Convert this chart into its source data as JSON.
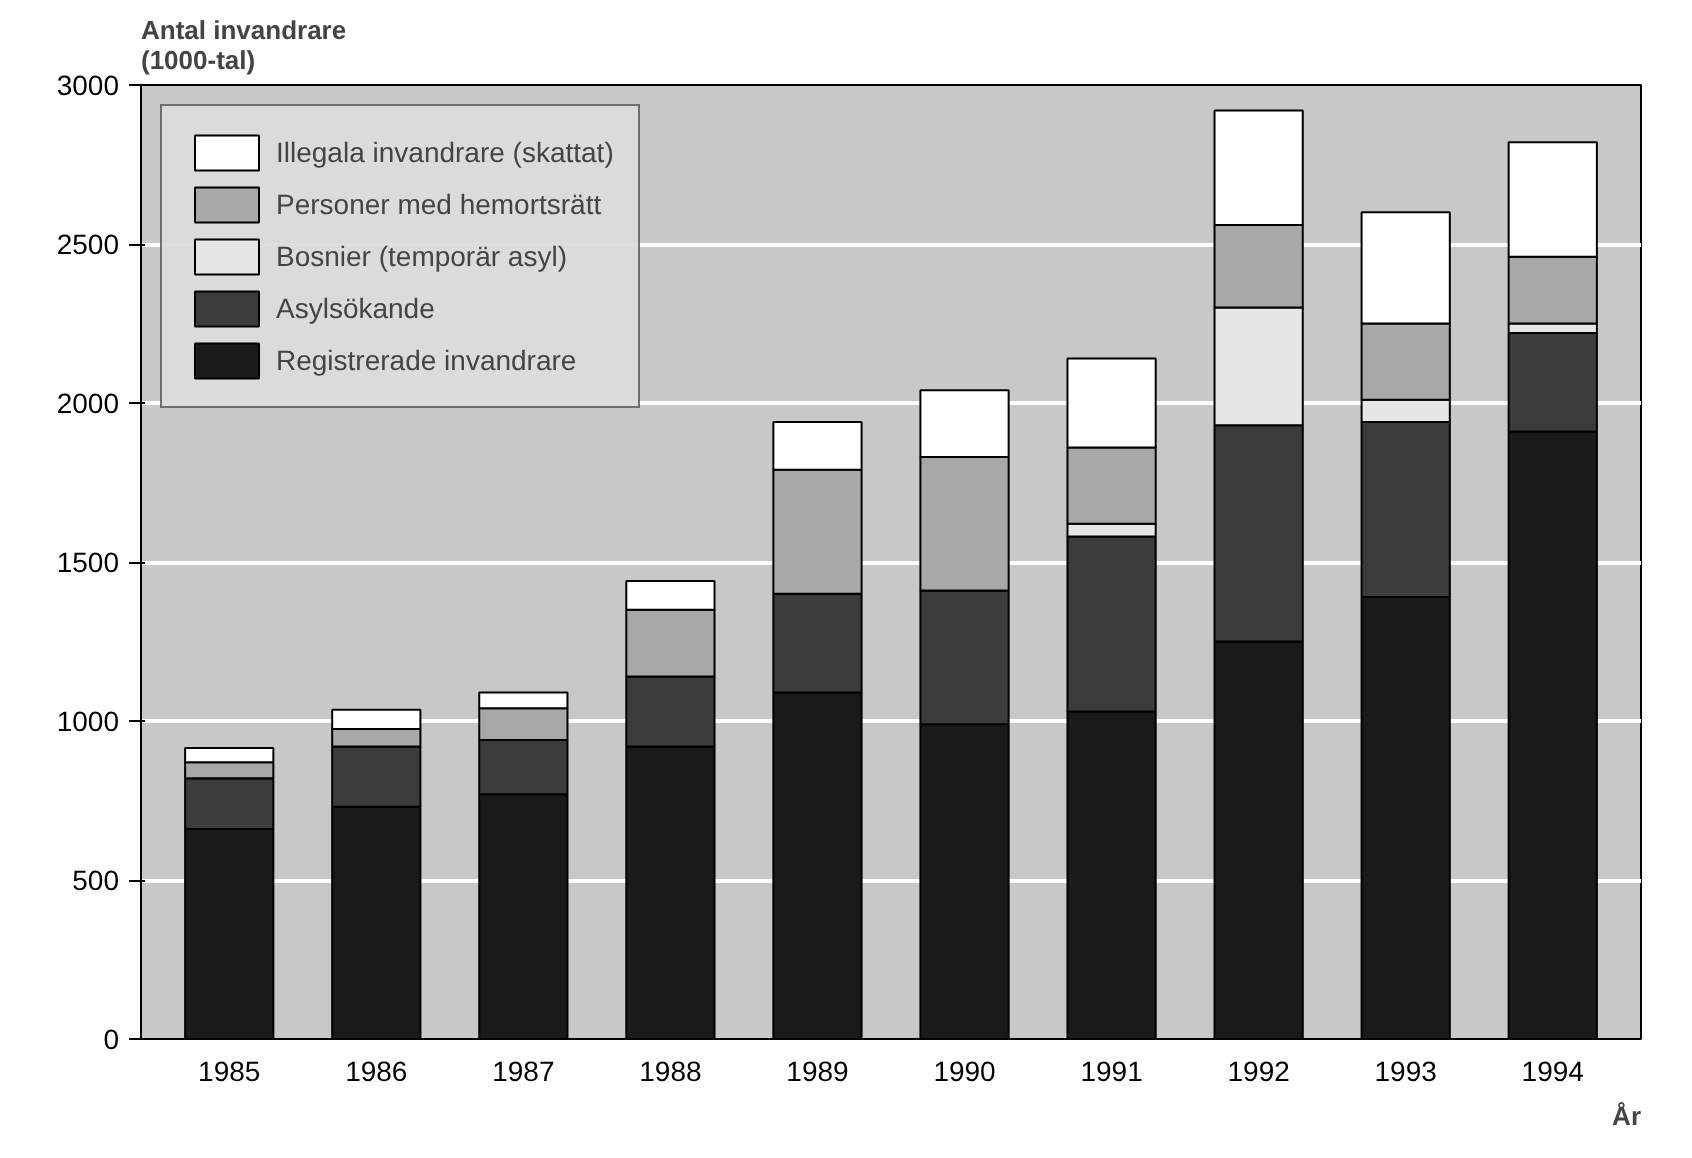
{
  "chart_data": {
    "type": "bar",
    "stacked": true,
    "ylabel": "Antal invandrare\n(1000-tal)",
    "xlabel": "År",
    "categories": [
      "1985",
      "1986",
      "1987",
      "1988",
      "1989",
      "1990",
      "1991",
      "1992",
      "1993",
      "1994"
    ],
    "series": [
      {
        "name": "Registrerade invandrare",
        "color": "#1a1a1a",
        "values": [
          660,
          730,
          770,
          920,
          1090,
          990,
          1030,
          1250,
          1390,
          1910
        ]
      },
      {
        "name": "Asylsökande",
        "color": "#3c3c3c",
        "values": [
          160,
          190,
          170,
          220,
          310,
          420,
          550,
          680,
          550,
          310
        ]
      },
      {
        "name": "Bosnier (temporär asyl)",
        "color": "#e6e6e6",
        "values": [
          0,
          0,
          0,
          0,
          0,
          0,
          40,
          370,
          70,
          30
        ]
      },
      {
        "name": "Personer med hemortsrätt",
        "color": "#a8a8a8",
        "values": [
          50,
          55,
          100,
          210,
          390,
          420,
          240,
          260,
          240,
          210
        ]
      },
      {
        "name": "Illegala invandrare (skattat)",
        "color": "#ffffff",
        "values": [
          45,
          60,
          50,
          90,
          150,
          210,
          280,
          360,
          350,
          360
        ]
      }
    ],
    "ylim": [
      0,
      3000
    ],
    "yticks": [
      0,
      500,
      1000,
      1500,
      2000,
      2500,
      3000
    ],
    "grid": "y",
    "legend": "top left"
  }
}
